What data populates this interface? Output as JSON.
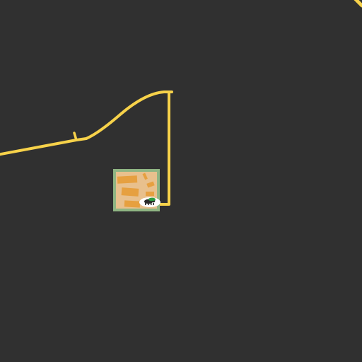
{
  "map": {
    "background_color": "#303030",
    "road_color": "#f7d24a",
    "park_color": "#8fb583",
    "building_color": "#e6a040",
    "landuse_color": "#e8c08d",
    "poi_marker": {
      "icon": "animal-icon",
      "label": ""
    }
  }
}
